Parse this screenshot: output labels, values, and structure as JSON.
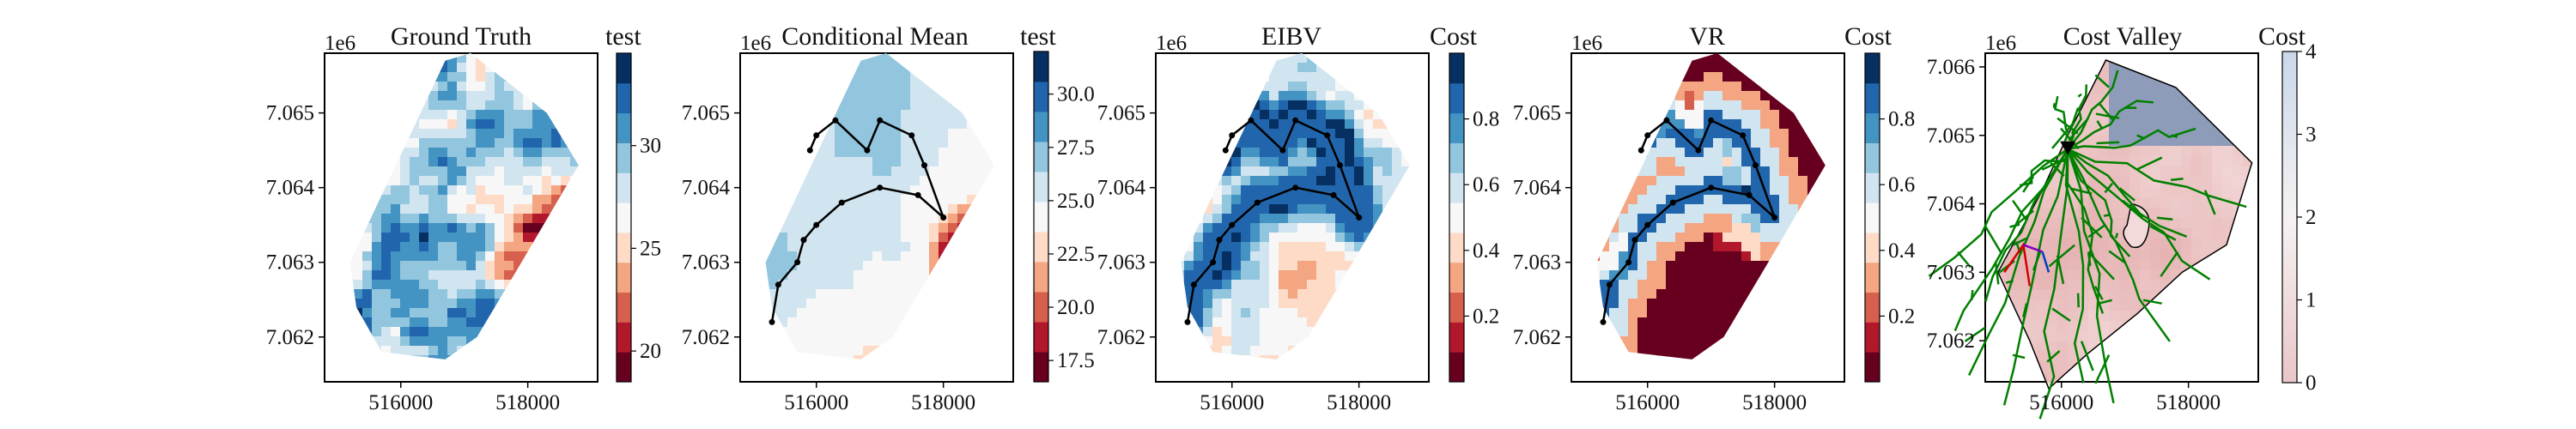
{
  "figure": {
    "background": "#ffffff",
    "cmap_rdbu_levels": [
      "#67001f",
      "#b2182b",
      "#d6604d",
      "#f4a582",
      "#fddbc7",
      "#f7f7f7",
      "#d1e5f0",
      "#92c5de",
      "#4393c3",
      "#2166ac",
      "#053061"
    ]
  },
  "chart_data": [
    {
      "type": "heatmap",
      "title": "Ground Truth",
      "xlabel": "",
      "ylabel": "",
      "x_offset_label": "1e6",
      "x_ticks": [
        516000,
        518000
      ],
      "x_tick_labels": [
        "516000",
        "518000"
      ],
      "y_ticks": [
        7.062,
        7.063,
        7.064,
        7.065
      ],
      "y_tick_labels": [
        "7.062",
        "7.063",
        "7.064",
        "7.065"
      ],
      "colorbar": {
        "label": "test",
        "range": [
          18.5,
          34.5
        ],
        "ticks": [
          20,
          25,
          30
        ],
        "tick_labels": [
          "20",
          "25",
          "30"
        ],
        "cmap": "RdBu"
      },
      "field": "ground_truth",
      "path": []
    },
    {
      "type": "heatmap",
      "title": "Conditional Mean",
      "xlabel": "",
      "ylabel": "",
      "x_offset_label": "1e6",
      "x_ticks": [
        516000,
        518000
      ],
      "x_tick_labels": [
        "516000",
        "518000"
      ],
      "y_ticks": [
        7.062,
        7.063,
        7.064,
        7.065
      ],
      "y_tick_labels": [
        "7.062",
        "7.063",
        "7.064",
        "7.065"
      ],
      "colorbar": {
        "label": "test",
        "range": [
          16.5,
          32.0
        ],
        "ticks": [
          17.5,
          20.0,
          22.5,
          25.0,
          27.5,
          30.0
        ],
        "tick_labels": [
          "17.5",
          "20.0",
          "22.5",
          "25.0",
          "27.5",
          "30.0"
        ],
        "cmap": "RdBu"
      },
      "field": "conditional_mean",
      "path": [
        [
          515300,
          7.0622
        ],
        [
          515400,
          7.0627
        ],
        [
          515700,
          7.063
        ],
        [
          515800,
          7.0633
        ],
        [
          516000,
          7.0635
        ],
        [
          516400,
          7.0638
        ],
        [
          517000,
          7.064
        ],
        [
          517600,
          7.0639
        ],
        [
          518000,
          7.0636
        ],
        [
          517700,
          7.0643
        ],
        [
          517500,
          7.0647
        ],
        [
          517000,
          7.0649
        ],
        [
          516800,
          7.0645
        ],
        [
          516300,
          7.0649
        ],
        [
          516000,
          7.0647
        ],
        [
          515900,
          7.0645
        ]
      ]
    },
    {
      "type": "heatmap",
      "title": "EIBV",
      "xlabel": "",
      "ylabel": "",
      "x_offset_label": "1e6",
      "x_ticks": [
        516000,
        518000
      ],
      "x_tick_labels": [
        "516000",
        "518000"
      ],
      "y_ticks": [
        7.062,
        7.063,
        7.064,
        7.065
      ],
      "y_tick_labels": [
        "7.062",
        "7.063",
        "7.064",
        "7.065"
      ],
      "colorbar": {
        "label": "Cost",
        "range": [
          0.0,
          1.0
        ],
        "ticks": [
          0.2,
          0.4,
          0.6,
          0.8
        ],
        "tick_labels": [
          "0.2",
          "0.4",
          "0.6",
          "0.8"
        ],
        "cmap": "RdBu"
      },
      "field": "eibv",
      "path": [
        [
          515300,
          7.0622
        ],
        [
          515400,
          7.0627
        ],
        [
          515700,
          7.063
        ],
        [
          515800,
          7.0633
        ],
        [
          516000,
          7.0635
        ],
        [
          516400,
          7.0638
        ],
        [
          517000,
          7.064
        ],
        [
          517600,
          7.0639
        ],
        [
          518000,
          7.0636
        ],
        [
          517700,
          7.0643
        ],
        [
          517500,
          7.0647
        ],
        [
          517000,
          7.0649
        ],
        [
          516800,
          7.0645
        ],
        [
          516300,
          7.0649
        ],
        [
          516000,
          7.0647
        ],
        [
          515900,
          7.0645
        ]
      ]
    },
    {
      "type": "heatmap",
      "title": "VR",
      "xlabel": "",
      "ylabel": "",
      "x_offset_label": "1e6",
      "x_ticks": [
        516000,
        518000
      ],
      "x_tick_labels": [
        "516000",
        "518000"
      ],
      "y_ticks": [
        7.062,
        7.063,
        7.064,
        7.065
      ],
      "y_tick_labels": [
        "7.062",
        "7.063",
        "7.064",
        "7.065"
      ],
      "colorbar": {
        "label": "Cost",
        "range": [
          0.0,
          1.0
        ],
        "ticks": [
          0.2,
          0.4,
          0.6,
          0.8
        ],
        "tick_labels": [
          "0.2",
          "0.4",
          "0.6",
          "0.8"
        ],
        "cmap": "RdBu"
      },
      "field": "vr",
      "path": [
        [
          515300,
          7.0622
        ],
        [
          515400,
          7.0627
        ],
        [
          515700,
          7.063
        ],
        [
          515800,
          7.0633
        ],
        [
          516000,
          7.0635
        ],
        [
          516400,
          7.0638
        ],
        [
          517000,
          7.064
        ],
        [
          517600,
          7.0639
        ],
        [
          518000,
          7.0636
        ],
        [
          517700,
          7.0643
        ],
        [
          517500,
          7.0647
        ],
        [
          517000,
          7.0649
        ],
        [
          516800,
          7.0645
        ],
        [
          516300,
          7.0649
        ],
        [
          516000,
          7.0647
        ],
        [
          515900,
          7.0645
        ]
      ]
    },
    {
      "type": "heatmap",
      "title": "Cost Valley",
      "xlabel": "",
      "ylabel": "",
      "x_offset_label": "1e6",
      "x_ticks": [
        516000,
        518000
      ],
      "x_tick_labels": [
        "516000",
        "518000"
      ],
      "y_ticks": [
        7.062,
        7.063,
        7.064,
        7.065,
        7.066
      ],
      "y_tick_labels": [
        "7.062",
        "7.063",
        "7.064",
        "7.065",
        "7.066"
      ],
      "colorbar": {
        "label": "Cost",
        "range": [
          0,
          4
        ],
        "ticks": [
          0,
          1,
          2,
          3,
          4
        ],
        "tick_labels": [
          "0",
          "1",
          "2",
          "3",
          "4"
        ],
        "cmap": "Reds-Blues-light"
      },
      "field": "cost_valley",
      "start_marker": [
        516100,
        7.0648
      ],
      "tree_color": "#008000",
      "path": []
    }
  ]
}
